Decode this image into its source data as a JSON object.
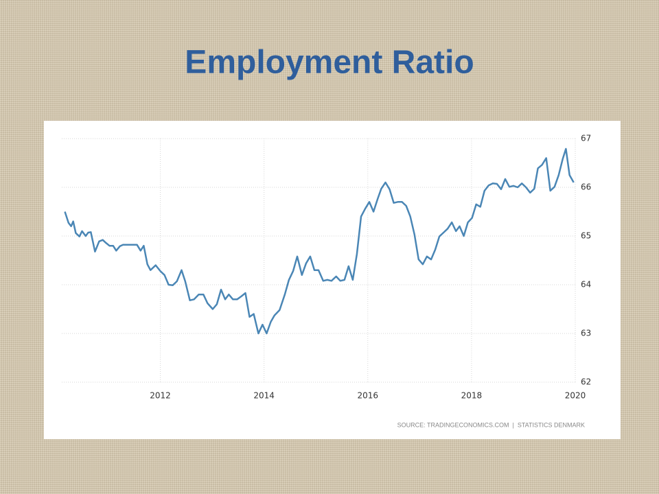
{
  "chart_data": {
    "type": "line",
    "title": "Employment Ratio",
    "source": "SOURCE: TRADINGECONOMICS.COM  |  STATISTICS DENMARK",
    "color": "#4a86b5",
    "x": [
      2010.16,
      2010.23,
      2010.28,
      2010.32,
      2010.37,
      2010.44,
      2010.49,
      2010.56,
      2010.61,
      2010.66,
      2010.74,
      2010.82,
      2010.89,
      2010.95,
      2011.02,
      2011.09,
      2011.15,
      2011.22,
      2011.28,
      2011.42,
      2011.55,
      2011.62,
      2011.68,
      2011.75,
      2011.81,
      2011.91,
      2012.0,
      2012.08,
      2012.16,
      2012.24,
      2012.32,
      2012.41,
      2012.48,
      2012.57,
      2012.65,
      2012.74,
      2012.83,
      2012.91,
      2013.01,
      2013.09,
      2013.17,
      2013.25,
      2013.32,
      2013.4,
      2013.48,
      2013.56,
      2013.64,
      2013.72,
      2013.8,
      2013.89,
      2013.97,
      2014.05,
      2014.13,
      2014.2,
      2014.3,
      2014.4,
      2014.48,
      2014.56,
      2014.64,
      2014.73,
      2014.81,
      2014.89,
      2014.97,
      2015.05,
      2015.14,
      2015.22,
      2015.3,
      2015.39,
      2015.47,
      2015.55,
      2015.63,
      2015.71,
      2015.79,
      2015.87,
      2015.95,
      2016.03,
      2016.11,
      2016.19,
      2016.26,
      2016.34,
      2016.42,
      2016.5,
      2016.58,
      2016.66,
      2016.74,
      2016.82,
      2016.9,
      2016.98,
      2017.06,
      2017.14,
      2017.22,
      2017.3,
      2017.38,
      2017.46,
      2017.54,
      2017.62,
      2017.7,
      2017.77,
      2017.85,
      2017.93,
      2018.01,
      2018.09,
      2018.17,
      2018.25,
      2018.33,
      2018.41,
      2018.49,
      2018.57,
      2018.65,
      2018.73,
      2018.81,
      2018.89,
      2018.97,
      2019.05,
      2019.13,
      2019.21,
      2019.28,
      2019.36,
      2019.44,
      2019.52,
      2019.6,
      2019.68,
      2019.76,
      2019.82,
      2019.89,
      2019.97
    ],
    "values": [
      65.5,
      65.27,
      65.2,
      65.3,
      65.06,
      64.99,
      65.1,
      65.0,
      65.07,
      65.08,
      64.68,
      64.89,
      64.92,
      64.86,
      64.8,
      64.8,
      64.7,
      64.79,
      64.82,
      64.82,
      64.82,
      64.7,
      64.8,
      64.42,
      64.3,
      64.4,
      64.28,
      64.2,
      64.0,
      63.99,
      64.07,
      64.3,
      64.07,
      63.68,
      63.7,
      63.8,
      63.8,
      63.62,
      63.5,
      63.6,
      63.9,
      63.7,
      63.8,
      63.7,
      63.7,
      63.76,
      63.83,
      63.34,
      63.4,
      63.0,
      63.18,
      63.0,
      63.24,
      63.37,
      63.48,
      63.8,
      64.1,
      64.28,
      64.58,
      64.2,
      64.44,
      64.58,
      64.3,
      64.3,
      64.08,
      64.1,
      64.08,
      64.17,
      64.08,
      64.1,
      64.38,
      64.1,
      64.63,
      65.4,
      65.56,
      65.7,
      65.5,
      65.76,
      65.97,
      66.1,
      65.96,
      65.68,
      65.7,
      65.7,
      65.62,
      65.4,
      65.03,
      64.52,
      64.42,
      64.58,
      64.52,
      64.72,
      64.99,
      65.07,
      65.15,
      65.28,
      65.1,
      65.2,
      65.0,
      65.28,
      65.37,
      65.65,
      65.6,
      65.93,
      66.04,
      66.08,
      66.07,
      65.96,
      66.17,
      66.01,
      66.03,
      66.0,
      66.08,
      66.0,
      65.89,
      65.97,
      66.39,
      66.46,
      66.6,
      65.93,
      66.01,
      66.25,
      66.59,
      66.79,
      66.25,
      66.1
    ],
    "xlim": [
      2010.1,
      2020
    ],
    "xticks": [
      2012,
      2014,
      2016,
      2018,
      2020
    ],
    "ylim": [
      62,
      67
    ],
    "yticks": [
      62,
      63,
      64,
      65,
      66,
      67
    ],
    "grid": true
  }
}
